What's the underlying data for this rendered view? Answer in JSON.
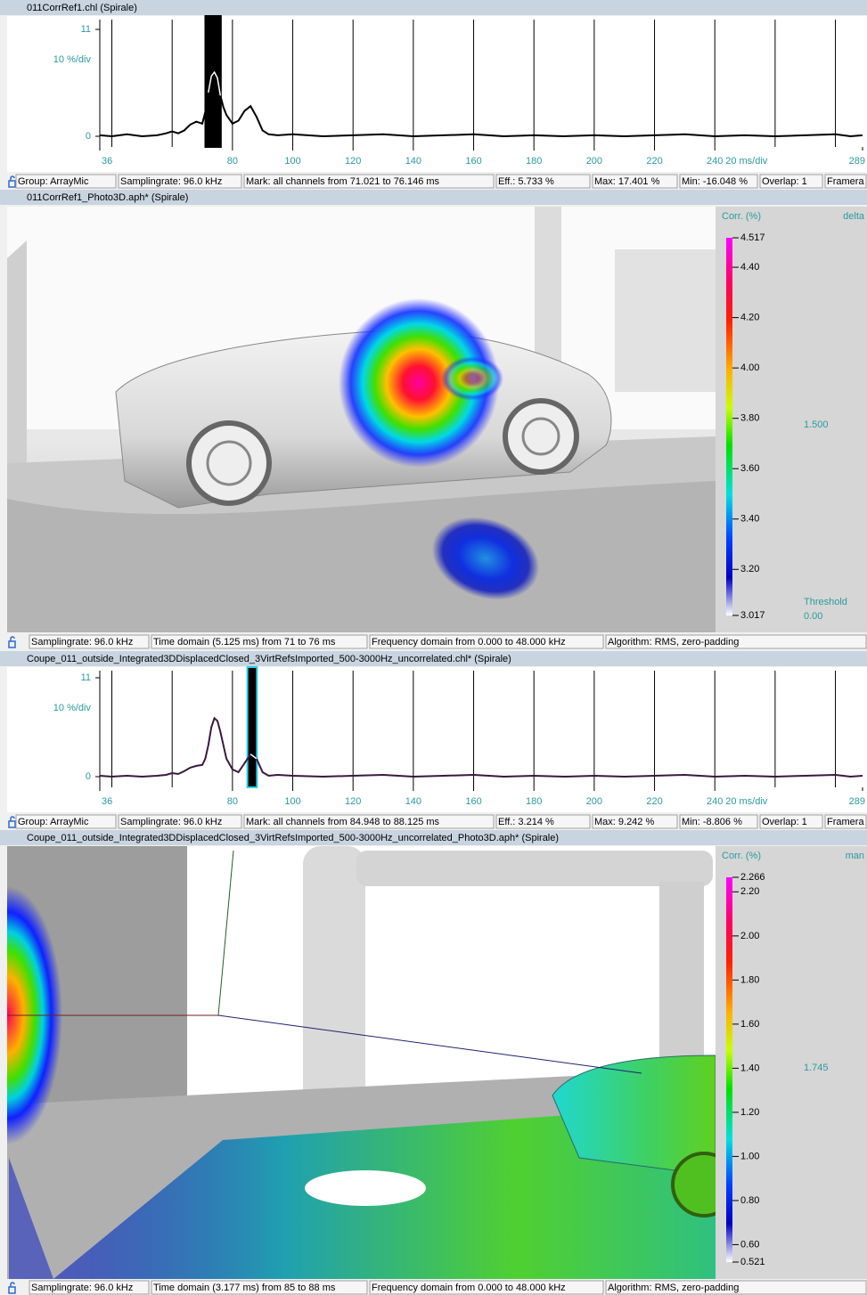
{
  "panels": [
    {
      "title": "011CorrRef1.chl (Spirale)",
      "chart": {
        "type": "line",
        "color": "#000000",
        "mark_fill": "#000000",
        "mark_outline": "#000000",
        "xlim": [
          36,
          289
        ],
        "ylim": [
          0,
          11
        ],
        "xticks": [
          36,
          80,
          100,
          120,
          140,
          160,
          180,
          200,
          220,
          240,
          289
        ],
        "yticks": [
          0,
          11
        ],
        "xgrid": [
          40,
          60,
          80,
          100,
          120,
          140,
          160,
          180,
          200,
          220,
          240,
          260,
          280
        ],
        "x_div_label": "20 ms/div",
        "y_div_label": "10 %/div",
        "mark": [
          71.021,
          76.146
        ],
        "x": [
          36,
          40,
          45,
          50,
          55,
          58,
          60,
          62,
          64,
          66,
          68,
          70,
          71,
          72,
          73,
          74,
          75,
          76,
          77,
          78,
          80,
          82,
          84,
          86,
          88,
          90,
          92,
          95,
          100,
          110,
          120,
          130,
          140,
          150,
          160,
          170,
          180,
          190,
          200,
          210,
          220,
          230,
          240,
          250,
          260,
          270,
          280,
          285,
          289
        ],
        "values": [
          0.1,
          0,
          0.2,
          0,
          0.1,
          0.3,
          0.5,
          0.3,
          0.6,
          1.2,
          1.5,
          1.3,
          2.5,
          4.5,
          6.2,
          6.6,
          6.0,
          4.2,
          3.0,
          2.2,
          1.3,
          1.6,
          2.6,
          3.1,
          2.0,
          0.6,
          0.2,
          0.1,
          0.2,
          0,
          0.1,
          0.2,
          0,
          0.1,
          0.2,
          0,
          0.1,
          0,
          0.1,
          0,
          0.1,
          0.2,
          0,
          0.1,
          0,
          0.1,
          0.2,
          0,
          0.1
        ]
      },
      "status": [
        "Group: ArrayMic",
        "Samplingrate: 96.0 kHz",
        "Mark: all channels from 71.021 to 76.146 ms",
        "Eff.: 5.733 %",
        "Max: 17.401 %",
        "Min: -16.048 %",
        "Overlap: 1",
        "Framera"
      ]
    },
    {
      "title": "011CorrRef1_Photo3D.aph* (Spirale)",
      "colorbar": {
        "title": "Corr. (%)",
        "mode": "delta",
        "ylim": [
          3.017,
          4.517
        ],
        "ticks": [
          4.517,
          {
            "value": 4.4,
            "label": "4.40"
          },
          {
            "value": 4.2,
            "label": "4.20"
          },
          {
            "value": 4.0,
            "label": "4.00"
          },
          {
            "value": 3.8,
            "label": "3.80"
          },
          {
            "value": 3.6,
            "label": "3.60"
          },
          {
            "value": 3.4,
            "label": "3.40"
          },
          {
            "value": 3.2,
            "label": "3.20"
          },
          3.017
        ],
        "range_label": "1.500",
        "threshold_label": "Threshold",
        "threshold": "0.00"
      },
      "status": [
        "Samplingrate: 96.0 kHz",
        "Time domain (5.125 ms) from 71 to 76 ms",
        "Frequency domain from 0.000 to 48.000 kHz",
        "Algorithm: RMS, zero-padding"
      ]
    },
    {
      "title": "Coupe_011_outside_Integrated3DDisplacedClosed_3VirtRefsImported_500-3000Hz_uncorrelated.chl* (Spirale)",
      "chart": {
        "type": "line",
        "color": "#3a1840",
        "mark_fill": "#000000",
        "mark_outline": "#22d3e6",
        "xlim": [
          36,
          289
        ],
        "ylim": [
          0,
          11
        ],
        "xticks": [
          36,
          80,
          100,
          120,
          140,
          160,
          180,
          200,
          220,
          240,
          289
        ],
        "yticks": [
          0,
          11
        ],
        "xgrid": [
          40,
          60,
          80,
          100,
          120,
          140,
          160,
          180,
          200,
          220,
          240,
          260,
          280
        ],
        "x_div_label": "20 ms/div",
        "y_div_label": "10 %/div",
        "mark": [
          84.948,
          88.125
        ],
        "x": [
          36,
          40,
          45,
          50,
          55,
          58,
          60,
          62,
          64,
          66,
          68,
          70,
          71,
          72,
          73,
          74,
          75,
          76,
          77,
          78,
          80,
          82,
          84,
          86,
          88,
          90,
          92,
          95,
          100,
          110,
          120,
          130,
          140,
          150,
          160,
          170,
          180,
          190,
          200,
          210,
          220,
          230,
          240,
          250,
          260,
          270,
          280,
          285,
          289
        ],
        "values": [
          0.1,
          0,
          0.1,
          0,
          0.1,
          0.2,
          0.4,
          0.3,
          0.6,
          1.0,
          1.2,
          1.3,
          2.0,
          3.5,
          5.5,
          6.5,
          6.2,
          5.0,
          3.5,
          2.0,
          0.8,
          0.5,
          1.5,
          2.5,
          2.0,
          0.5,
          0.1,
          0.2,
          0.1,
          0,
          0.1,
          0.2,
          0,
          0.1,
          0.2,
          0,
          0.1,
          0,
          0.1,
          0,
          0.1,
          0.2,
          0,
          0.1,
          0,
          0.1,
          0.2,
          0,
          0.1
        ]
      },
      "status": [
        "Group: ArrayMic",
        "Samplingrate: 96.0 kHz",
        "Mark: all channels from 84.948 to 88.125 ms",
        "Eff.: 3.214 %",
        "Max: 9.242 %",
        "Min: -8.806 %",
        "Overlap: 1",
        "Framera"
      ]
    },
    {
      "title": "Coupe_011_outside_Integrated3DDisplacedClosed_3VirtRefsImported_500-3000Hz_uncorrelated_Photo3D.aph* (Spirale)",
      "colorbar": {
        "title": "Corr. (%)",
        "mode": "man",
        "ylim": [
          0.521,
          2.266
        ],
        "ticks": [
          2.266,
          {
            "value": 2.2,
            "label": "2.20"
          },
          {
            "value": 2.0,
            "label": "2.00"
          },
          {
            "value": 1.8,
            "label": "1.80"
          },
          {
            "value": 1.6,
            "label": "1.60"
          },
          {
            "value": 1.4,
            "label": "1.40"
          },
          {
            "value": 1.2,
            "label": "1.20"
          },
          {
            "value": 1.0,
            "label": "1.00"
          },
          {
            "value": 0.8,
            "label": "0.80"
          },
          {
            "value": 0.6,
            "label": "0.60"
          },
          0.521
        ],
        "range_label": "1.745"
      },
      "status": [
        "Samplingrate: 96.0 kHz",
        "Time domain (3.177 ms) from 85 to 88 ms",
        "Frequency domain from 0.000 to 48.000 kHz",
        "Algorithm: RMS, zero-padding"
      ]
    }
  ]
}
